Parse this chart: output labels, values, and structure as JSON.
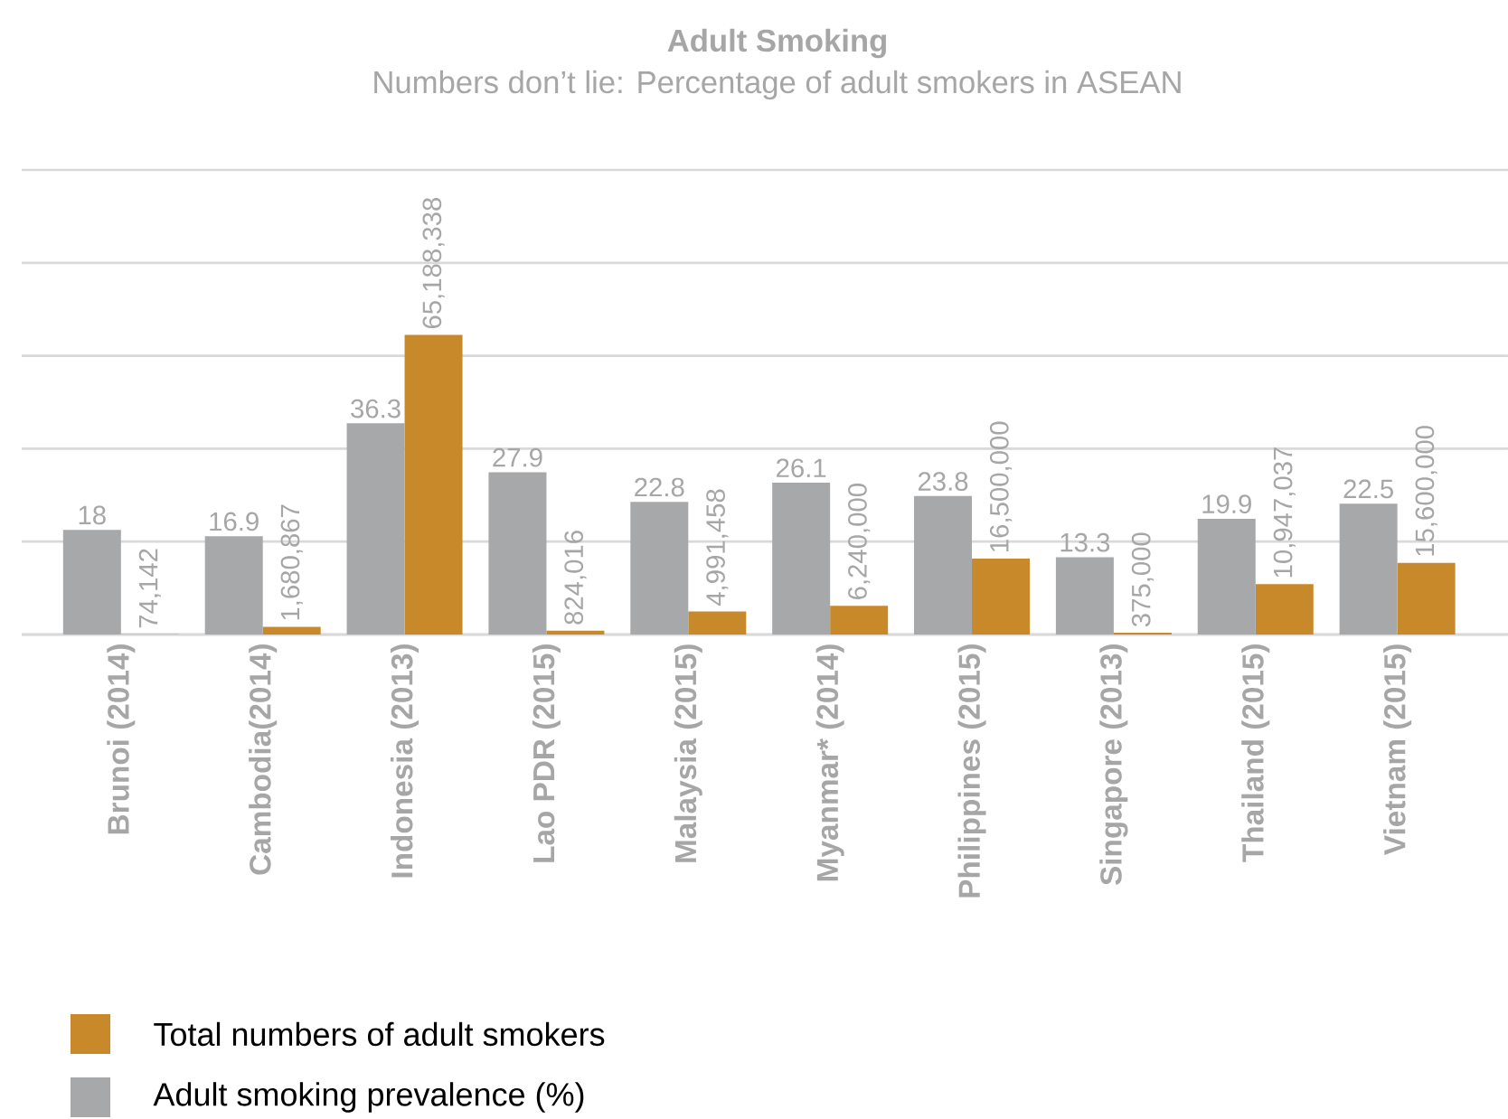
{
  "chart_data": {
    "type": "bar",
    "title": "Adult Smoking",
    "subtitle": "Numbers don’t lie: Percentage of adult smokers in ASEAN",
    "categories": [
      "Brunoi (2014)",
      "Cambodia(2014)",
      "Indonesia (2013)",
      "Lao PDR (2015)",
      "Malaysia (2015)",
      "Myanmar* (2014)",
      "Philippines (2015)",
      "Singapore (2013)",
      "Thailand (2015)",
      "Vietnam (2015)"
    ],
    "tick_labels": "x",
    "grid": "y",
    "legend": "bottom left",
    "series": [
      {
        "name": "Adult smoking prevalence (%)",
        "color": "#a7a8aa",
        "axis": "y2",
        "values": [
          18,
          16.9,
          36.3,
          27.9,
          22.8,
          26.1,
          23.8,
          13.3,
          19.9,
          22.5
        ],
        "value_labels": [
          "18",
          "16.9",
          "36.3",
          "27.9",
          "22.8",
          "26.1",
          "23.8",
          "13.3",
          "19.9",
          "22.5"
        ]
      },
      {
        "name": "Total numbers of adult smokers",
        "color": "#c8892b",
        "values": [
          74142,
          1680867,
          65188338,
          824016,
          4991458,
          6240000,
          16500000,
          375000,
          10947037,
          15600000
        ],
        "value_labels": [
          "74,142",
          "1,680,867",
          "65,188,338",
          "824,016",
          "4,991,458",
          "6,240,000",
          "16,500,000",
          "375,000",
          "10,947,037",
          "15,600,000"
        ]
      }
    ]
  }
}
